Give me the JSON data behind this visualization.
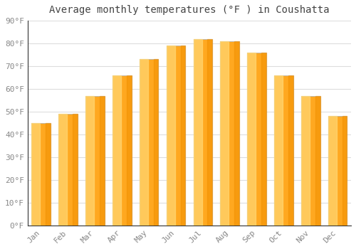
{
  "title": "Average monthly temperatures (°F ) in Coushatta",
  "months": [
    "Jan",
    "Feb",
    "Mar",
    "Apr",
    "May",
    "Jun",
    "Jul",
    "Aug",
    "Sep",
    "Oct",
    "Nov",
    "Dec"
  ],
  "values": [
    45,
    49,
    57,
    66,
    73,
    79,
    82,
    81,
    76,
    66,
    57,
    48
  ],
  "bar_color_main": "#FFA820",
  "bar_color_light": "#FFD875",
  "bar_color_dark": "#F09000",
  "bar_edge_color": "#AAAAAA",
  "ylim": [
    0,
    90
  ],
  "yticks": [
    0,
    10,
    20,
    30,
    40,
    50,
    60,
    70,
    80,
    90
  ],
  "ylabel_suffix": "°F",
  "background_color": "#FFFFFF",
  "plot_bg_color": "#FFFFFF",
  "grid_color": "#DDDDDD",
  "title_fontsize": 10,
  "tick_fontsize": 8,
  "tick_color": "#888888",
  "title_color": "#444444"
}
